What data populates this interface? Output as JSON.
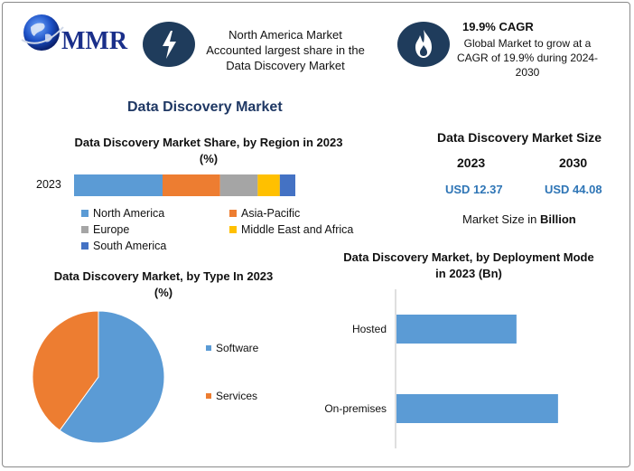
{
  "logo": {
    "text": "MMR"
  },
  "info_card_1": {
    "icon": "lightning-bolt-icon",
    "text": "North America Market Accounted largest share in the Data Discovery Market"
  },
  "info_card_2": {
    "icon": "flame-icon",
    "title": "19.9% CAGR",
    "text": "Global Market to grow at a CAGR of 19.9% during 2024-2030"
  },
  "page_title": "Data Discovery Market",
  "market_size": {
    "title": "Data Discovery Market Size",
    "year_1": "2023",
    "year_2": "2030",
    "value_1": "USD 12.37",
    "value_2": "USD 44.08",
    "note_prefix": "Market Size in ",
    "note_bold": "Billion"
  },
  "colors": {
    "north_america": "#5b9bd5",
    "asia_pacific": "#ed7d31",
    "europe": "#a5a5a5",
    "mea": "#ffc000",
    "south_america": "#4472c4",
    "brand_dark": "#1f3c5c",
    "title_blue": "#1f3864"
  },
  "chart_data": [
    {
      "type": "bar",
      "orientation": "horizontal-stacked",
      "title": "Data Discovery Market Share, by Region in 2023 (%)",
      "categories": [
        "2023"
      ],
      "series": [
        {
          "name": "North America",
          "values": [
            40
          ]
        },
        {
          "name": "Asia-Pacific",
          "values": [
            26
          ]
        },
        {
          "name": "Europe",
          "values": [
            17
          ]
        },
        {
          "name": "Middle East and Africa",
          "values": [
            10
          ]
        },
        {
          "name": "South America",
          "values": [
            7
          ]
        }
      ],
      "xlim": [
        0,
        100
      ],
      "grid": false,
      "legend": "bottom"
    },
    {
      "type": "pie",
      "title": "Data Discovery Market, by Type In 2023 (%)",
      "categories": [
        "Software",
        "Services"
      ],
      "values": [
        60,
        40
      ],
      "legend": "right"
    },
    {
      "type": "bar",
      "orientation": "horizontal",
      "title": "Data Discovery Market, by Deployment Mode in 2023 (Bn)",
      "categories": [
        "Hosted",
        "On-premises"
      ],
      "values": [
        5.2,
        7.0
      ],
      "xlim": [
        0,
        9
      ],
      "grid": false
    }
  ]
}
